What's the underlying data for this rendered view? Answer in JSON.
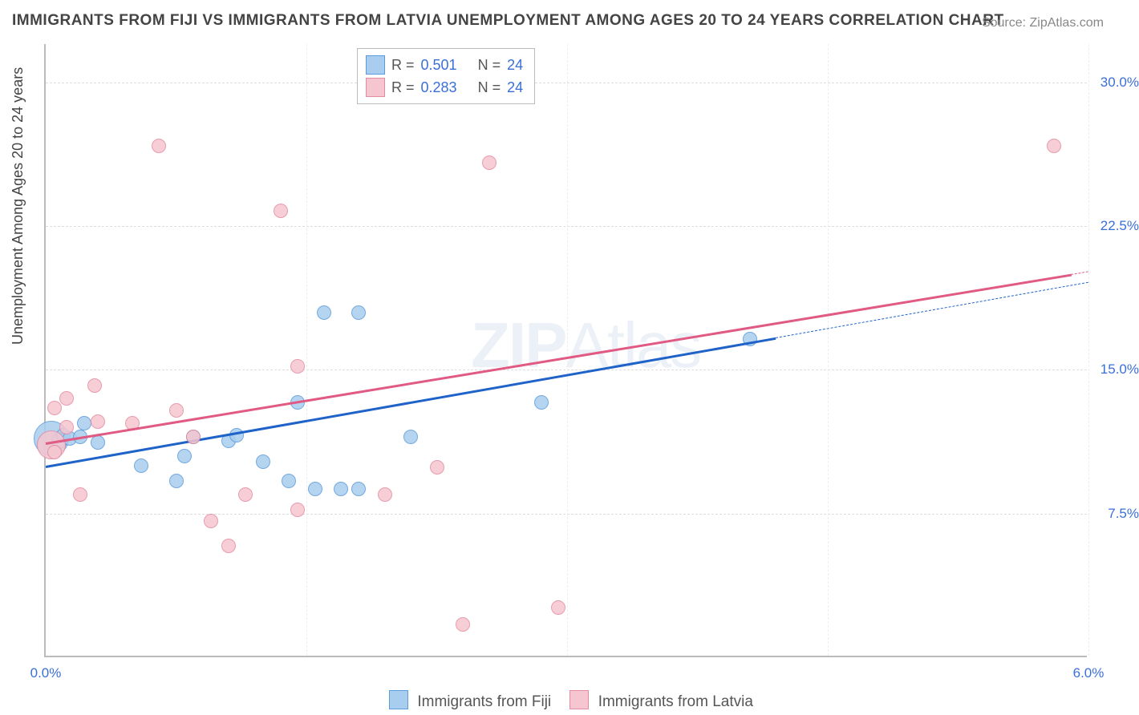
{
  "title": "IMMIGRANTS FROM FIJI VS IMMIGRANTS FROM LATVIA UNEMPLOYMENT AMONG AGES 20 TO 24 YEARS CORRELATION CHART",
  "source": "Source: ZipAtlas.com",
  "ylabel": "Unemployment Among Ages 20 to 24 years",
  "watermark_bold": "ZIP",
  "watermark_thin": "Atlas",
  "chart": {
    "type": "scatter",
    "xlim": [
      0,
      6
    ],
    "ylim": [
      0,
      32
    ],
    "xticks": [
      {
        "v": 0.0,
        "label": "0.0%"
      },
      {
        "v": 6.0,
        "label": "6.0%"
      }
    ],
    "yticks": [
      {
        "v": 7.5,
        "label": "7.5%"
      },
      {
        "v": 15.0,
        "label": "15.0%"
      },
      {
        "v": 22.5,
        "label": "22.5%"
      },
      {
        "v": 30.0,
        "label": "30.0%"
      }
    ],
    "vgrid": [
      1.5,
      3.0,
      4.5,
      6.0
    ],
    "background_color": "#ffffff",
    "grid_color": "#e0e0e0",
    "axis_color": "#bbbbbb",
    "series": [
      {
        "name": "Immigrants from Fiji",
        "fill": "#a9cdee",
        "stroke": "#5a9bdc",
        "line_color": "#1f63c9",
        "reg_from": {
          "x": 0.0,
          "y": 10.0
        },
        "reg_to": {
          "x": 4.2,
          "y": 16.7
        },
        "dash_to": {
          "x": 6.0,
          "y": 19.6
        },
        "points": [
          {
            "x": 0.03,
            "y": 11.4,
            "r": 22
          },
          {
            "x": 0.08,
            "y": 11.3,
            "r": 10
          },
          {
            "x": 0.1,
            "y": 11.6,
            "r": 9
          },
          {
            "x": 0.14,
            "y": 11.4,
            "r": 9
          },
          {
            "x": 0.2,
            "y": 11.5,
            "r": 9
          },
          {
            "x": 0.22,
            "y": 12.2,
            "r": 9
          },
          {
            "x": 0.3,
            "y": 11.2,
            "r": 9
          },
          {
            "x": 0.55,
            "y": 10.0,
            "r": 9
          },
          {
            "x": 0.75,
            "y": 9.2,
            "r": 9
          },
          {
            "x": 0.8,
            "y": 10.5,
            "r": 9
          },
          {
            "x": 0.85,
            "y": 11.5,
            "r": 9
          },
          {
            "x": 1.05,
            "y": 11.3,
            "r": 9
          },
          {
            "x": 1.1,
            "y": 11.6,
            "r": 9
          },
          {
            "x": 1.25,
            "y": 10.2,
            "r": 9
          },
          {
            "x": 1.4,
            "y": 9.2,
            "r": 9
          },
          {
            "x": 1.45,
            "y": 13.3,
            "r": 9
          },
          {
            "x": 1.55,
            "y": 8.8,
            "r": 9
          },
          {
            "x": 1.6,
            "y": 18.0,
            "r": 9
          },
          {
            "x": 1.7,
            "y": 8.8,
            "r": 9
          },
          {
            "x": 1.8,
            "y": 18.0,
            "r": 9
          },
          {
            "x": 1.8,
            "y": 8.8,
            "r": 9
          },
          {
            "x": 2.1,
            "y": 11.5,
            "r": 9
          },
          {
            "x": 2.85,
            "y": 13.3,
            "r": 9
          },
          {
            "x": 4.05,
            "y": 16.6,
            "r": 9
          }
        ]
      },
      {
        "name": "Immigrants from Latvia",
        "fill": "#f6c6d0",
        "stroke": "#e38ba0",
        "line_color": "#e05a84",
        "reg_from": {
          "x": 0.0,
          "y": 11.2
        },
        "reg_to": {
          "x": 5.9,
          "y": 20.0
        },
        "dash_to": {
          "x": 6.0,
          "y": 20.15
        },
        "points": [
          {
            "x": 0.03,
            "y": 11.1,
            "r": 18
          },
          {
            "x": 0.05,
            "y": 13.0,
            "r": 9
          },
          {
            "x": 0.05,
            "y": 10.7,
            "r": 9
          },
          {
            "x": 0.12,
            "y": 12.0,
            "r": 9
          },
          {
            "x": 0.12,
            "y": 13.5,
            "r": 9
          },
          {
            "x": 0.2,
            "y": 8.5,
            "r": 9
          },
          {
            "x": 0.28,
            "y": 14.2,
            "r": 9
          },
          {
            "x": 0.3,
            "y": 12.3,
            "r": 9
          },
          {
            "x": 0.5,
            "y": 12.2,
            "r": 9
          },
          {
            "x": 0.65,
            "y": 26.7,
            "r": 9
          },
          {
            "x": 0.75,
            "y": 12.9,
            "r": 9
          },
          {
            "x": 0.85,
            "y": 11.5,
            "r": 9
          },
          {
            "x": 0.95,
            "y": 7.1,
            "r": 9
          },
          {
            "x": 1.05,
            "y": 5.8,
            "r": 9
          },
          {
            "x": 1.15,
            "y": 8.5,
            "r": 9
          },
          {
            "x": 1.35,
            "y": 23.3,
            "r": 9
          },
          {
            "x": 1.45,
            "y": 15.2,
            "r": 9
          },
          {
            "x": 1.45,
            "y": 7.7,
            "r": 9
          },
          {
            "x": 1.95,
            "y": 8.5,
            "r": 9
          },
          {
            "x": 2.25,
            "y": 9.9,
            "r": 9
          },
          {
            "x": 2.4,
            "y": 1.7,
            "r": 9
          },
          {
            "x": 2.55,
            "y": 25.8,
            "r": 9
          },
          {
            "x": 2.95,
            "y": 2.6,
            "r": 9
          },
          {
            "x": 5.8,
            "y": 26.7,
            "r": 9
          }
        ]
      }
    ]
  },
  "legend_top": {
    "rows": [
      {
        "swatch_fill": "#a9cdee",
        "swatch_stroke": "#5a9bdc",
        "r_label": "R =",
        "r_val": "0.501",
        "n_label": "N =",
        "n_val": "24"
      },
      {
        "swatch_fill": "#f6c6d0",
        "swatch_stroke": "#e38ba0",
        "r_label": "R =",
        "r_val": "0.283",
        "n_label": "N =",
        "n_val": "24"
      }
    ]
  },
  "legend_bottom": [
    {
      "swatch_fill": "#a9cdee",
      "swatch_stroke": "#5a9bdc",
      "label": "Immigrants from Fiji"
    },
    {
      "swatch_fill": "#f6c6d0",
      "swatch_stroke": "#e38ba0",
      "label": "Immigrants from Latvia"
    }
  ]
}
